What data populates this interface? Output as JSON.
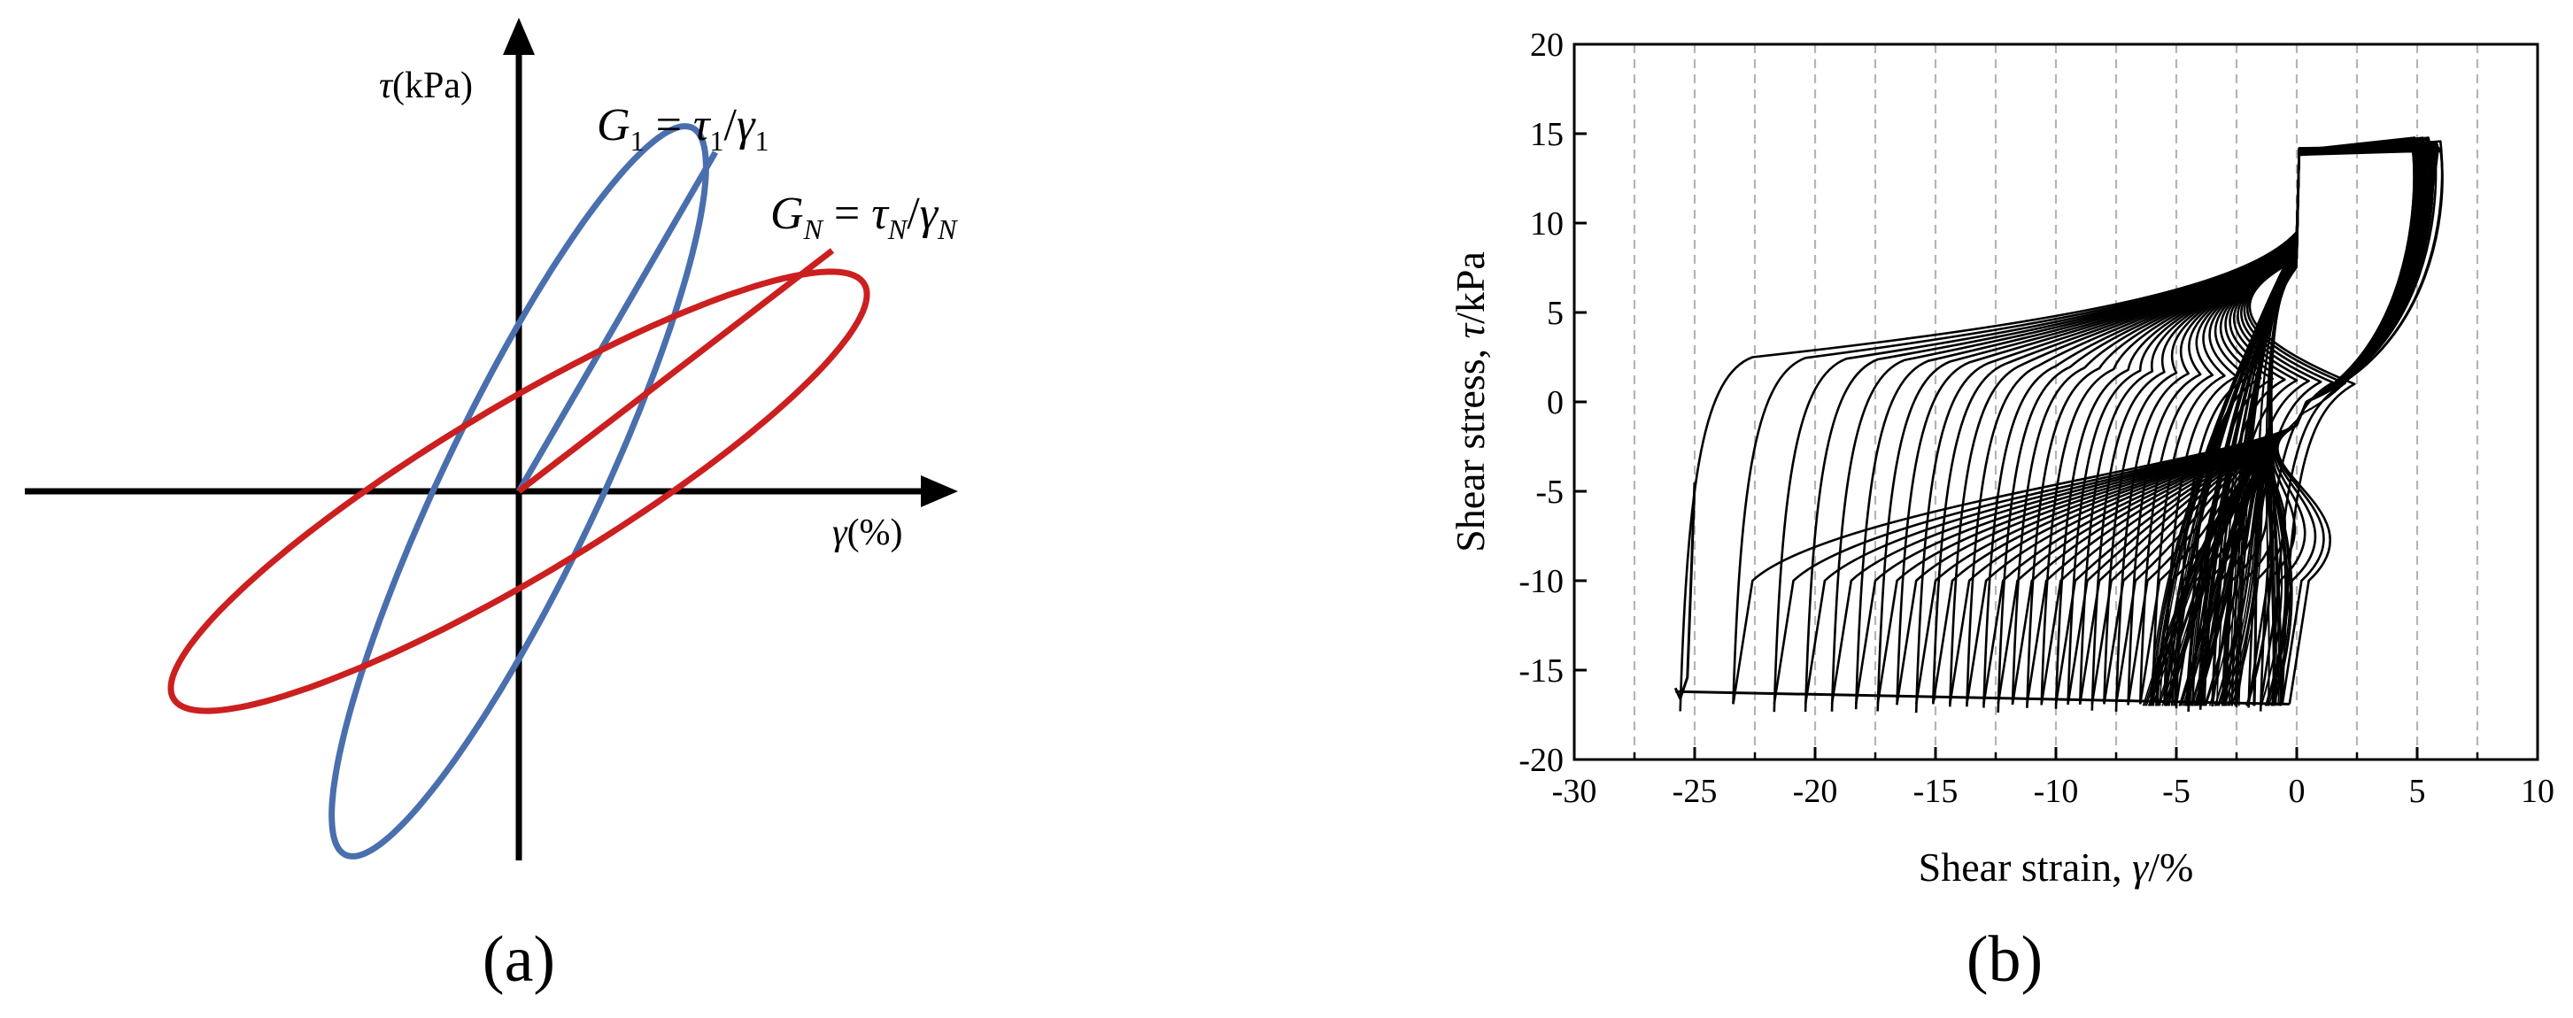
{
  "colors": {
    "axis": "#000000",
    "blue_loop": "#4a6fae",
    "red_loop": "#cc1f1f",
    "grid_dash": "#b5b5b5",
    "data_line": "#000000"
  },
  "panel_a": {
    "caption": "(a)",
    "y_axis_label": {
      "sym": "τ",
      "rest": "(kPa)"
    },
    "x_axis_label": {
      "sym": "γ",
      "rest": "(%)"
    },
    "eq1": {
      "G": "G",
      "gsub": "1",
      "eq": " = ",
      "tau": "τ",
      "tsub": "1",
      "slash": "/",
      "gam": "γ",
      "gsub2": "1"
    },
    "eqN": {
      "G": "G",
      "gsub": "N",
      "eq": " = ",
      "tau": "τ",
      "tsub": "N",
      "slash": "/",
      "gam": "γ",
      "gsub2": "N"
    }
  },
  "chart_data": {
    "type": "line",
    "caption": "(b)",
    "title": "",
    "xlabel": "Shear strain, γ/%",
    "xlabel_parts": {
      "pre": "Shear strain, ",
      "sym": "γ",
      "post": "/%"
    },
    "ylabel": "Shear stress, τ/kPa",
    "ylabel_parts": {
      "pre": "Shear stress, ",
      "sym": "τ",
      "post": "/kPa"
    },
    "xlim": [
      -30,
      10
    ],
    "ylim": [
      -20,
      20
    ],
    "x_ticks": [
      -30,
      -25,
      -20,
      -15,
      -10,
      -5,
      0,
      5,
      10
    ],
    "x_tick_labels": [
      "-30",
      "-25",
      "-20",
      "-15",
      "-10",
      "-5",
      "0",
      "5",
      "10"
    ],
    "y_ticks": [
      -20,
      -15,
      -10,
      -5,
      0,
      5,
      10,
      15,
      20
    ],
    "y_tick_labels": [
      "-20",
      "-15",
      "-10",
      "-5",
      "0",
      "5",
      "10",
      "15",
      "20"
    ],
    "dashed_vertical_lines_x": [
      -27.5,
      -25,
      -22.5,
      -20,
      -17.5,
      -15,
      -12.5,
      -10,
      -7.5,
      -5,
      -2.5,
      0,
      2.5,
      5,
      7.5
    ],
    "legend": "none",
    "series": [
      {
        "values_note": "representative cyclic stress-strain loops",
        "cycles_min_strain": [
          -25.6,
          -23.4,
          -21.7,
          -20.4,
          -19.3,
          -18.3,
          -17.4,
          -16.6,
          -15.8,
          -15.1,
          -14.4,
          -13.7,
          -13.0,
          -12.4,
          -11.8,
          -11.2,
          -10.6,
          -10.0,
          -9.5,
          -9.0,
          -8.5,
          -8.0,
          -7.5,
          -7.0,
          -6.5,
          -6.0,
          -5.5,
          -5.0,
          -4.5,
          -4.0,
          -3.5,
          -3.0,
          -2.5,
          -2.0,
          -1.5,
          -1.0,
          -0.6
        ],
        "start_point": [
          -25.0,
          -4.5
        ],
        "max_strain": 6.0,
        "peak_stress": 15.0,
        "min_stress": -17.5
      }
    ]
  }
}
